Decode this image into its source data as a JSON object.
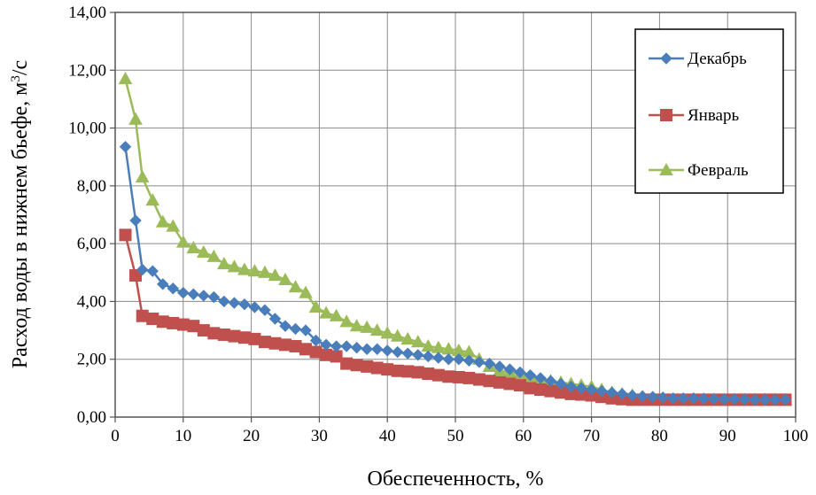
{
  "chart_data": {
    "type": "line",
    "title": "",
    "xlabel": "Обеспеченность, %",
    "ylabel_main": "Расход воды в нижнем бьефе, м",
    "ylabel_sup": "3",
    "ylabel_tail": "/с",
    "xlim": [
      0,
      100
    ],
    "ylim": [
      0,
      14
    ],
    "xticks": [
      0,
      10,
      20,
      30,
      40,
      50,
      60,
      70,
      80,
      90,
      100
    ],
    "xtick_labels": [
      "0",
      "10",
      "20",
      "30",
      "40",
      "50",
      "60",
      "70",
      "80",
      "90",
      "100"
    ],
    "yticks": [
      0,
      2,
      4,
      6,
      8,
      10,
      12,
      14
    ],
    "ytick_labels": [
      "0,00",
      "2,00",
      "4,00",
      "6,00",
      "8,00",
      "10,00",
      "12,00",
      "14,00"
    ],
    "grid": true,
    "legend_position": "top-right",
    "series": [
      {
        "name": "Декабрь",
        "color": "#4a7ebb",
        "marker": "diamond",
        "points": [
          [
            1.5,
            9.35
          ],
          [
            3.0,
            6.8
          ],
          [
            4.0,
            5.1
          ],
          [
            5.5,
            5.05
          ],
          [
            7.0,
            4.6
          ],
          [
            8.5,
            4.45
          ],
          [
            10.0,
            4.3
          ],
          [
            11.5,
            4.25
          ],
          [
            13.0,
            4.2
          ],
          [
            14.5,
            4.15
          ],
          [
            16.0,
            4.0
          ],
          [
            17.5,
            3.95
          ],
          [
            19.0,
            3.9
          ],
          [
            20.5,
            3.8
          ],
          [
            22.0,
            3.7
          ],
          [
            23.5,
            3.4
          ],
          [
            25.0,
            3.15
          ],
          [
            26.5,
            3.05
          ],
          [
            28.0,
            3.0
          ],
          [
            29.5,
            2.65
          ],
          [
            31.0,
            2.5
          ],
          [
            32.5,
            2.45
          ],
          [
            34.0,
            2.45
          ],
          [
            35.5,
            2.4
          ],
          [
            37.0,
            2.35
          ],
          [
            38.5,
            2.35
          ],
          [
            40.0,
            2.3
          ],
          [
            41.5,
            2.25
          ],
          [
            43.0,
            2.2
          ],
          [
            44.5,
            2.15
          ],
          [
            46.0,
            2.1
          ],
          [
            47.5,
            2.05
          ],
          [
            49.0,
            2.0
          ],
          [
            50.5,
            2.0
          ],
          [
            52.0,
            1.95
          ],
          [
            53.5,
            1.9
          ],
          [
            55.0,
            1.85
          ],
          [
            56.5,
            1.75
          ],
          [
            58.0,
            1.65
          ],
          [
            59.5,
            1.55
          ],
          [
            61.0,
            1.45
          ],
          [
            62.5,
            1.35
          ],
          [
            64.0,
            1.25
          ],
          [
            65.5,
            1.15
          ],
          [
            67.0,
            1.05
          ],
          [
            68.5,
            1.0
          ],
          [
            70.0,
            0.95
          ],
          [
            71.5,
            0.9
          ],
          [
            73.0,
            0.85
          ],
          [
            74.5,
            0.8
          ],
          [
            76.0,
            0.75
          ],
          [
            77.5,
            0.72
          ],
          [
            79.0,
            0.7
          ],
          [
            80.5,
            0.68
          ],
          [
            82.0,
            0.65
          ],
          [
            83.5,
            0.65
          ],
          [
            85.0,
            0.65
          ],
          [
            86.5,
            0.64
          ],
          [
            88.0,
            0.63
          ],
          [
            89.5,
            0.62
          ],
          [
            91.0,
            0.62
          ],
          [
            92.5,
            0.61
          ],
          [
            94.0,
            0.6
          ],
          [
            95.5,
            0.6
          ],
          [
            97.0,
            0.6
          ],
          [
            98.5,
            0.6
          ]
        ]
      },
      {
        "name": "Январь",
        "color": "#c0504d",
        "marker": "square",
        "points": [
          [
            1.5,
            6.3
          ],
          [
            3.0,
            4.9
          ],
          [
            4.0,
            3.5
          ],
          [
            5.5,
            3.4
          ],
          [
            7.0,
            3.3
          ],
          [
            8.5,
            3.25
          ],
          [
            10.0,
            3.2
          ],
          [
            11.5,
            3.15
          ],
          [
            13.0,
            3.0
          ],
          [
            14.5,
            2.9
          ],
          [
            16.0,
            2.85
          ],
          [
            17.5,
            2.8
          ],
          [
            19.0,
            2.75
          ],
          [
            20.5,
            2.7
          ],
          [
            22.0,
            2.6
          ],
          [
            23.5,
            2.55
          ],
          [
            25.0,
            2.5
          ],
          [
            26.5,
            2.45
          ],
          [
            28.0,
            2.35
          ],
          [
            29.5,
            2.25
          ],
          [
            31.0,
            2.15
          ],
          [
            32.5,
            2.1
          ],
          [
            34.0,
            1.85
          ],
          [
            35.5,
            1.8
          ],
          [
            37.0,
            1.75
          ],
          [
            38.5,
            1.7
          ],
          [
            40.0,
            1.65
          ],
          [
            41.5,
            1.6
          ],
          [
            43.0,
            1.58
          ],
          [
            44.5,
            1.55
          ],
          [
            46.0,
            1.5
          ],
          [
            47.5,
            1.45
          ],
          [
            49.0,
            1.4
          ],
          [
            50.5,
            1.38
          ],
          [
            52.0,
            1.35
          ],
          [
            53.5,
            1.3
          ],
          [
            55.0,
            1.25
          ],
          [
            56.5,
            1.2
          ],
          [
            58.0,
            1.15
          ],
          [
            59.5,
            1.1
          ],
          [
            61.0,
            1.0
          ],
          [
            62.5,
            0.95
          ],
          [
            64.0,
            0.9
          ],
          [
            65.5,
            0.85
          ],
          [
            67.0,
            0.8
          ],
          [
            68.5,
            0.78
          ],
          [
            70.0,
            0.75
          ],
          [
            71.5,
            0.7
          ],
          [
            73.0,
            0.65
          ],
          [
            74.5,
            0.62
          ],
          [
            76.0,
            0.6
          ],
          [
            77.5,
            0.6
          ],
          [
            79.0,
            0.6
          ],
          [
            80.5,
            0.6
          ],
          [
            82.0,
            0.6
          ],
          [
            83.5,
            0.6
          ],
          [
            85.0,
            0.6
          ],
          [
            86.5,
            0.6
          ],
          [
            88.0,
            0.6
          ],
          [
            89.5,
            0.6
          ],
          [
            91.0,
            0.6
          ],
          [
            92.5,
            0.6
          ],
          [
            94.0,
            0.6
          ],
          [
            95.5,
            0.6
          ],
          [
            97.0,
            0.6
          ],
          [
            98.5,
            0.6
          ]
        ]
      },
      {
        "name": "Февраль",
        "color": "#9bbb59",
        "marker": "triangle",
        "points": [
          [
            1.5,
            11.7
          ],
          [
            3.0,
            10.3
          ],
          [
            4.0,
            8.3
          ],
          [
            5.5,
            7.5
          ],
          [
            7.0,
            6.75
          ],
          [
            8.5,
            6.6
          ],
          [
            10.0,
            6.05
          ],
          [
            11.5,
            5.85
          ],
          [
            13.0,
            5.7
          ],
          [
            14.5,
            5.55
          ],
          [
            16.0,
            5.3
          ],
          [
            17.5,
            5.2
          ],
          [
            19.0,
            5.1
          ],
          [
            20.5,
            5.05
          ],
          [
            22.0,
            5.0
          ],
          [
            23.5,
            4.9
          ],
          [
            25.0,
            4.75
          ],
          [
            26.5,
            4.5
          ],
          [
            28.0,
            4.3
          ],
          [
            29.5,
            3.8
          ],
          [
            31.0,
            3.6
          ],
          [
            32.5,
            3.5
          ],
          [
            34.0,
            3.3
          ],
          [
            35.5,
            3.15
          ],
          [
            37.0,
            3.1
          ],
          [
            38.5,
            3.0
          ],
          [
            40.0,
            2.9
          ],
          [
            41.5,
            2.8
          ],
          [
            43.0,
            2.7
          ],
          [
            44.5,
            2.6
          ],
          [
            46.0,
            2.45
          ],
          [
            47.5,
            2.4
          ],
          [
            49.0,
            2.35
          ],
          [
            50.5,
            2.3
          ],
          [
            52.0,
            2.25
          ],
          [
            53.5,
            2.0
          ],
          [
            55.0,
            1.75
          ],
          [
            56.5,
            1.6
          ],
          [
            58.0,
            1.55
          ],
          [
            59.5,
            1.5
          ],
          [
            61.0,
            1.4
          ],
          [
            62.5,
            1.3
          ],
          [
            64.0,
            1.25
          ],
          [
            65.5,
            1.2
          ],
          [
            67.0,
            1.15
          ],
          [
            68.5,
            1.1
          ],
          [
            70.0,
            1.05
          ],
          [
            71.5,
            0.95
          ],
          [
            73.0,
            0.85
          ],
          [
            74.5,
            0.8
          ],
          [
            76.0,
            0.75
          ],
          [
            77.5,
            0.7
          ],
          [
            79.0,
            0.65
          ],
          [
            80.5,
            0.62
          ],
          [
            82.0,
            0.6
          ],
          [
            83.5,
            0.6
          ],
          [
            85.0,
            0.6
          ],
          [
            86.5,
            0.6
          ],
          [
            88.0,
            0.6
          ],
          [
            89.5,
            0.6
          ],
          [
            91.0,
            0.6
          ],
          [
            92.5,
            0.6
          ],
          [
            94.0,
            0.6
          ],
          [
            95.5,
            0.6
          ],
          [
            97.0,
            0.6
          ],
          [
            98.5,
            0.6
          ]
        ]
      }
    ]
  }
}
